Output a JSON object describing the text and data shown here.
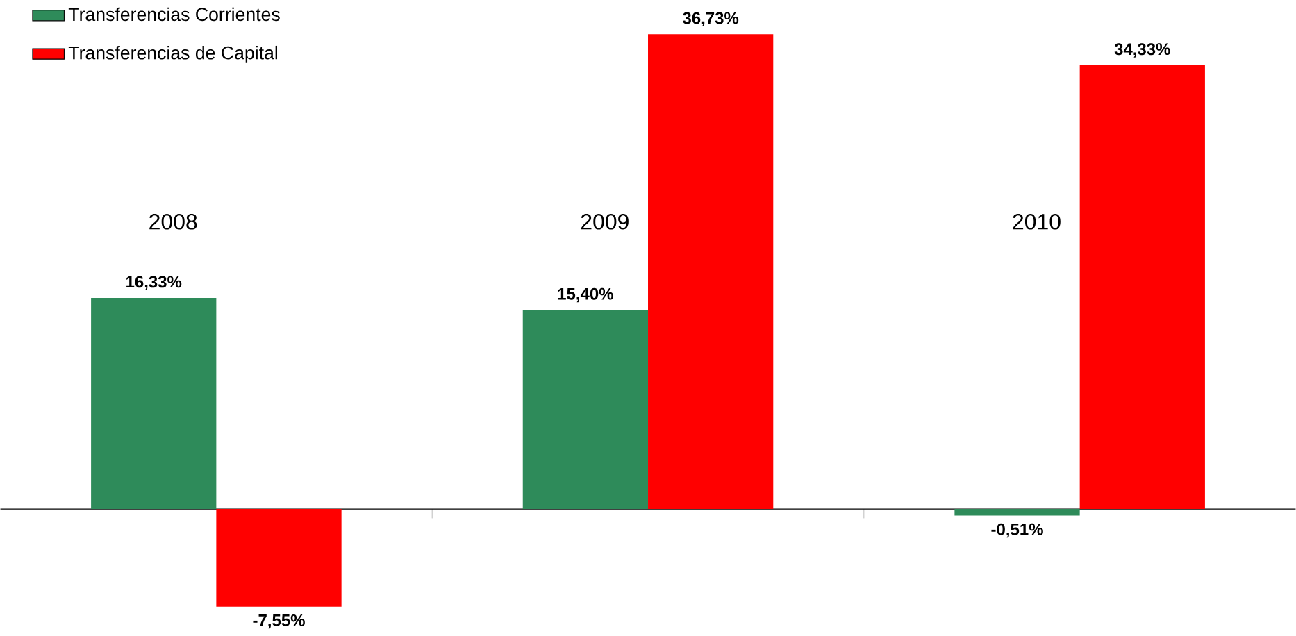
{
  "chart_data": {
    "type": "bar",
    "categories": [
      "2008",
      "2009",
      "2010"
    ],
    "series": [
      {
        "name": "Transferencias Corrientes",
        "color": "#2e8b5a",
        "values": [
          16.33,
          15.4,
          -0.51
        ],
        "value_labels": [
          "16,33%",
          "15,40%",
          "-0,51%"
        ]
      },
      {
        "name": "Transferencias de Capital",
        "color": "#ff0000",
        "values": [
          -7.55,
          36.73,
          34.33
        ],
        "value_labels": [
          "-7,55%",
          "36,73%",
          "34,33%"
        ]
      }
    ],
    "legend": "top left"
  }
}
